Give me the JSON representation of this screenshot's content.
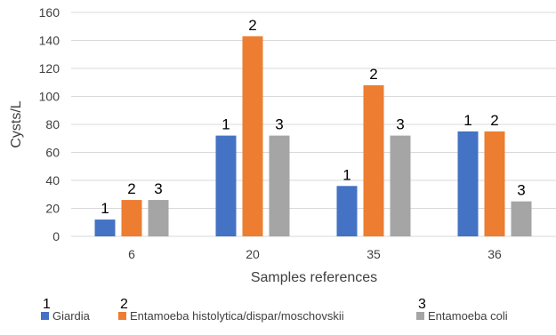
{
  "chart_data": {
    "type": "bar",
    "ylabel": "Cysts/L",
    "xlabel": "Samples references",
    "ylim": [
      0,
      160
    ],
    "yticks": [
      0,
      20,
      40,
      60,
      80,
      100,
      120,
      140,
      160
    ],
    "grid": true,
    "legend_position": "bottom",
    "categories": [
      "6",
      "20",
      "35",
      "36"
    ],
    "series": [
      {
        "name": "Giardia",
        "color": "#4472C4",
        "values": [
          12,
          72,
          36,
          75
        ],
        "bar_labels": [
          "1",
          "1",
          "1",
          "1"
        ],
        "legend_number": "1"
      },
      {
        "name": "Entamoeba histolytica/dispar/moschovskii",
        "color": "#ED7D31",
        "values": [
          26,
          143,
          108,
          75
        ],
        "bar_labels": [
          "2",
          "2",
          "2",
          "2"
        ],
        "legend_number": "2"
      },
      {
        "name": "Entamoeba coli",
        "color": "#A5A5A5",
        "values": [
          26,
          72,
          72,
          25
        ],
        "bar_labels": [
          "3",
          "3",
          "3",
          "3"
        ],
        "legend_number": "3"
      }
    ]
  }
}
